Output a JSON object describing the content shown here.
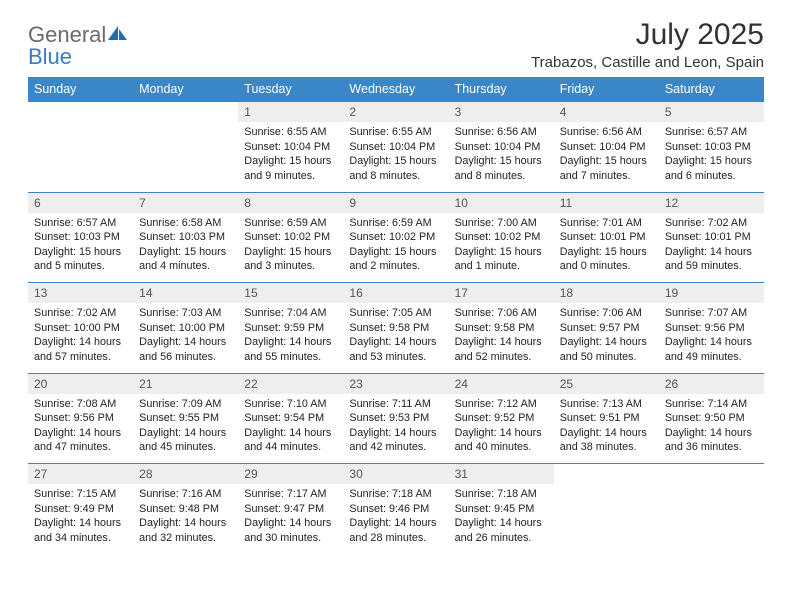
{
  "logo": {
    "text1": "General",
    "text2": "Blue"
  },
  "title": "July 2025",
  "location": "Trabazos, Castille and Leon, Spain",
  "colors": {
    "header_bg": "#3b86c7",
    "header_text": "#ffffff",
    "daynum_bg": "#eeeeee",
    "border": "#3b86c7",
    "logo_gray": "#6a6a6a",
    "logo_blue": "#3b7bc0"
  },
  "day_headers": [
    "Sunday",
    "Monday",
    "Tuesday",
    "Wednesday",
    "Thursday",
    "Friday",
    "Saturday"
  ],
  "weeks": [
    {
      "nums": [
        "",
        "",
        "1",
        "2",
        "3",
        "4",
        "5"
      ],
      "cells": [
        "",
        "",
        "Sunrise: 6:55 AM\nSunset: 10:04 PM\nDaylight: 15 hours and 9 minutes.",
        "Sunrise: 6:55 AM\nSunset: 10:04 PM\nDaylight: 15 hours and 8 minutes.",
        "Sunrise: 6:56 AM\nSunset: 10:04 PM\nDaylight: 15 hours and 8 minutes.",
        "Sunrise: 6:56 AM\nSunset: 10:04 PM\nDaylight: 15 hours and 7 minutes.",
        "Sunrise: 6:57 AM\nSunset: 10:03 PM\nDaylight: 15 hours and 6 minutes."
      ]
    },
    {
      "nums": [
        "6",
        "7",
        "8",
        "9",
        "10",
        "11",
        "12"
      ],
      "cells": [
        "Sunrise: 6:57 AM\nSunset: 10:03 PM\nDaylight: 15 hours and 5 minutes.",
        "Sunrise: 6:58 AM\nSunset: 10:03 PM\nDaylight: 15 hours and 4 minutes.",
        "Sunrise: 6:59 AM\nSunset: 10:02 PM\nDaylight: 15 hours and 3 minutes.",
        "Sunrise: 6:59 AM\nSunset: 10:02 PM\nDaylight: 15 hours and 2 minutes.",
        "Sunrise: 7:00 AM\nSunset: 10:02 PM\nDaylight: 15 hours and 1 minute.",
        "Sunrise: 7:01 AM\nSunset: 10:01 PM\nDaylight: 15 hours and 0 minutes.",
        "Sunrise: 7:02 AM\nSunset: 10:01 PM\nDaylight: 14 hours and 59 minutes."
      ]
    },
    {
      "nums": [
        "13",
        "14",
        "15",
        "16",
        "17",
        "18",
        "19"
      ],
      "cells": [
        "Sunrise: 7:02 AM\nSunset: 10:00 PM\nDaylight: 14 hours and 57 minutes.",
        "Sunrise: 7:03 AM\nSunset: 10:00 PM\nDaylight: 14 hours and 56 minutes.",
        "Sunrise: 7:04 AM\nSunset: 9:59 PM\nDaylight: 14 hours and 55 minutes.",
        "Sunrise: 7:05 AM\nSunset: 9:58 PM\nDaylight: 14 hours and 53 minutes.",
        "Sunrise: 7:06 AM\nSunset: 9:58 PM\nDaylight: 14 hours and 52 minutes.",
        "Sunrise: 7:06 AM\nSunset: 9:57 PM\nDaylight: 14 hours and 50 minutes.",
        "Sunrise: 7:07 AM\nSunset: 9:56 PM\nDaylight: 14 hours and 49 minutes."
      ]
    },
    {
      "nums": [
        "20",
        "21",
        "22",
        "23",
        "24",
        "25",
        "26"
      ],
      "cells": [
        "Sunrise: 7:08 AM\nSunset: 9:56 PM\nDaylight: 14 hours and 47 minutes.",
        "Sunrise: 7:09 AM\nSunset: 9:55 PM\nDaylight: 14 hours and 45 minutes.",
        "Sunrise: 7:10 AM\nSunset: 9:54 PM\nDaylight: 14 hours and 44 minutes.",
        "Sunrise: 7:11 AM\nSunset: 9:53 PM\nDaylight: 14 hours and 42 minutes.",
        "Sunrise: 7:12 AM\nSunset: 9:52 PM\nDaylight: 14 hours and 40 minutes.",
        "Sunrise: 7:13 AM\nSunset: 9:51 PM\nDaylight: 14 hours and 38 minutes.",
        "Sunrise: 7:14 AM\nSunset: 9:50 PM\nDaylight: 14 hours and 36 minutes."
      ]
    },
    {
      "nums": [
        "27",
        "28",
        "29",
        "30",
        "31",
        "",
        ""
      ],
      "cells": [
        "Sunrise: 7:15 AM\nSunset: 9:49 PM\nDaylight: 14 hours and 34 minutes.",
        "Sunrise: 7:16 AM\nSunset: 9:48 PM\nDaylight: 14 hours and 32 minutes.",
        "Sunrise: 7:17 AM\nSunset: 9:47 PM\nDaylight: 14 hours and 30 minutes.",
        "Sunrise: 7:18 AM\nSunset: 9:46 PM\nDaylight: 14 hours and 28 minutes.",
        "Sunrise: 7:18 AM\nSunset: 9:45 PM\nDaylight: 14 hours and 26 minutes.",
        "",
        ""
      ]
    }
  ]
}
